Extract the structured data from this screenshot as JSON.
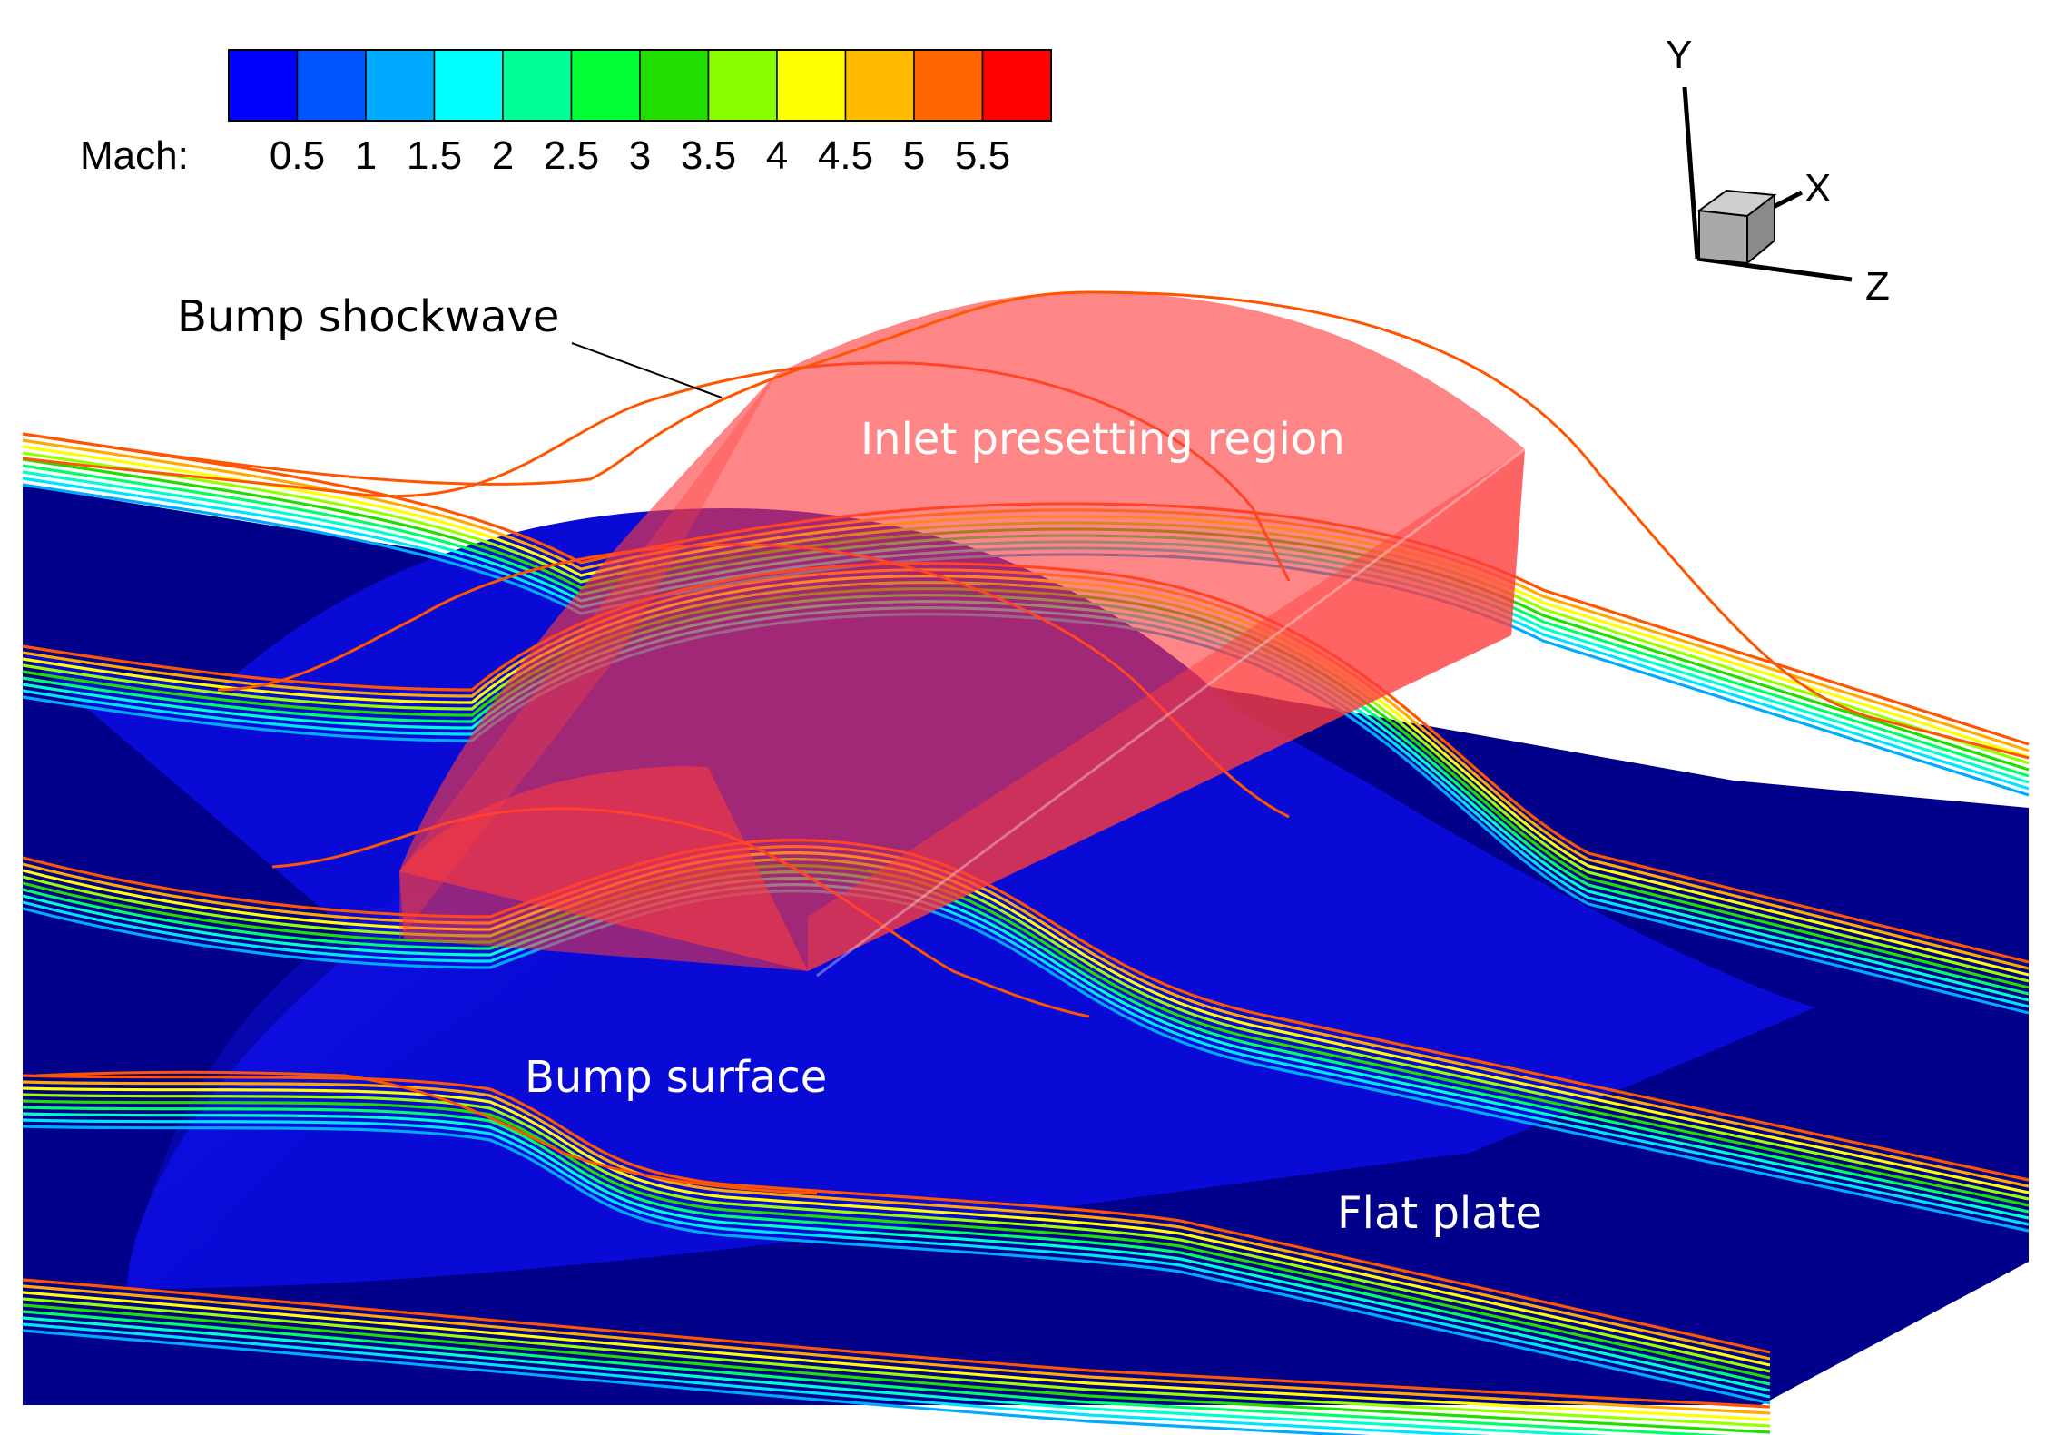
{
  "legend": {
    "label": "Mach:",
    "colors": [
      "#0000ff",
      "#0055ff",
      "#00aaff",
      "#00ffff",
      "#00ff99",
      "#00ff33",
      "#22dd00",
      "#88ff00",
      "#ffff00",
      "#ffbb00",
      "#ff6600",
      "#ff0000"
    ],
    "ticks": [
      "0.5",
      "1",
      "1.5",
      "2",
      "2.5",
      "3",
      "3.5",
      "4",
      "4.5",
      "5",
      "5.5"
    ]
  },
  "axes": {
    "y": "Y",
    "x": "X",
    "z": "Z"
  },
  "annotations": {
    "shock": "Bump shockwave",
    "inlet": "Inlet presetting region",
    "bump": "Bump surface",
    "plate": "Flat plate"
  },
  "colors": {
    "plate": "#00008b",
    "bump": "#0a0ad6",
    "inlet": "#ff3b3b",
    "shock_line": "#ff5500"
  }
}
